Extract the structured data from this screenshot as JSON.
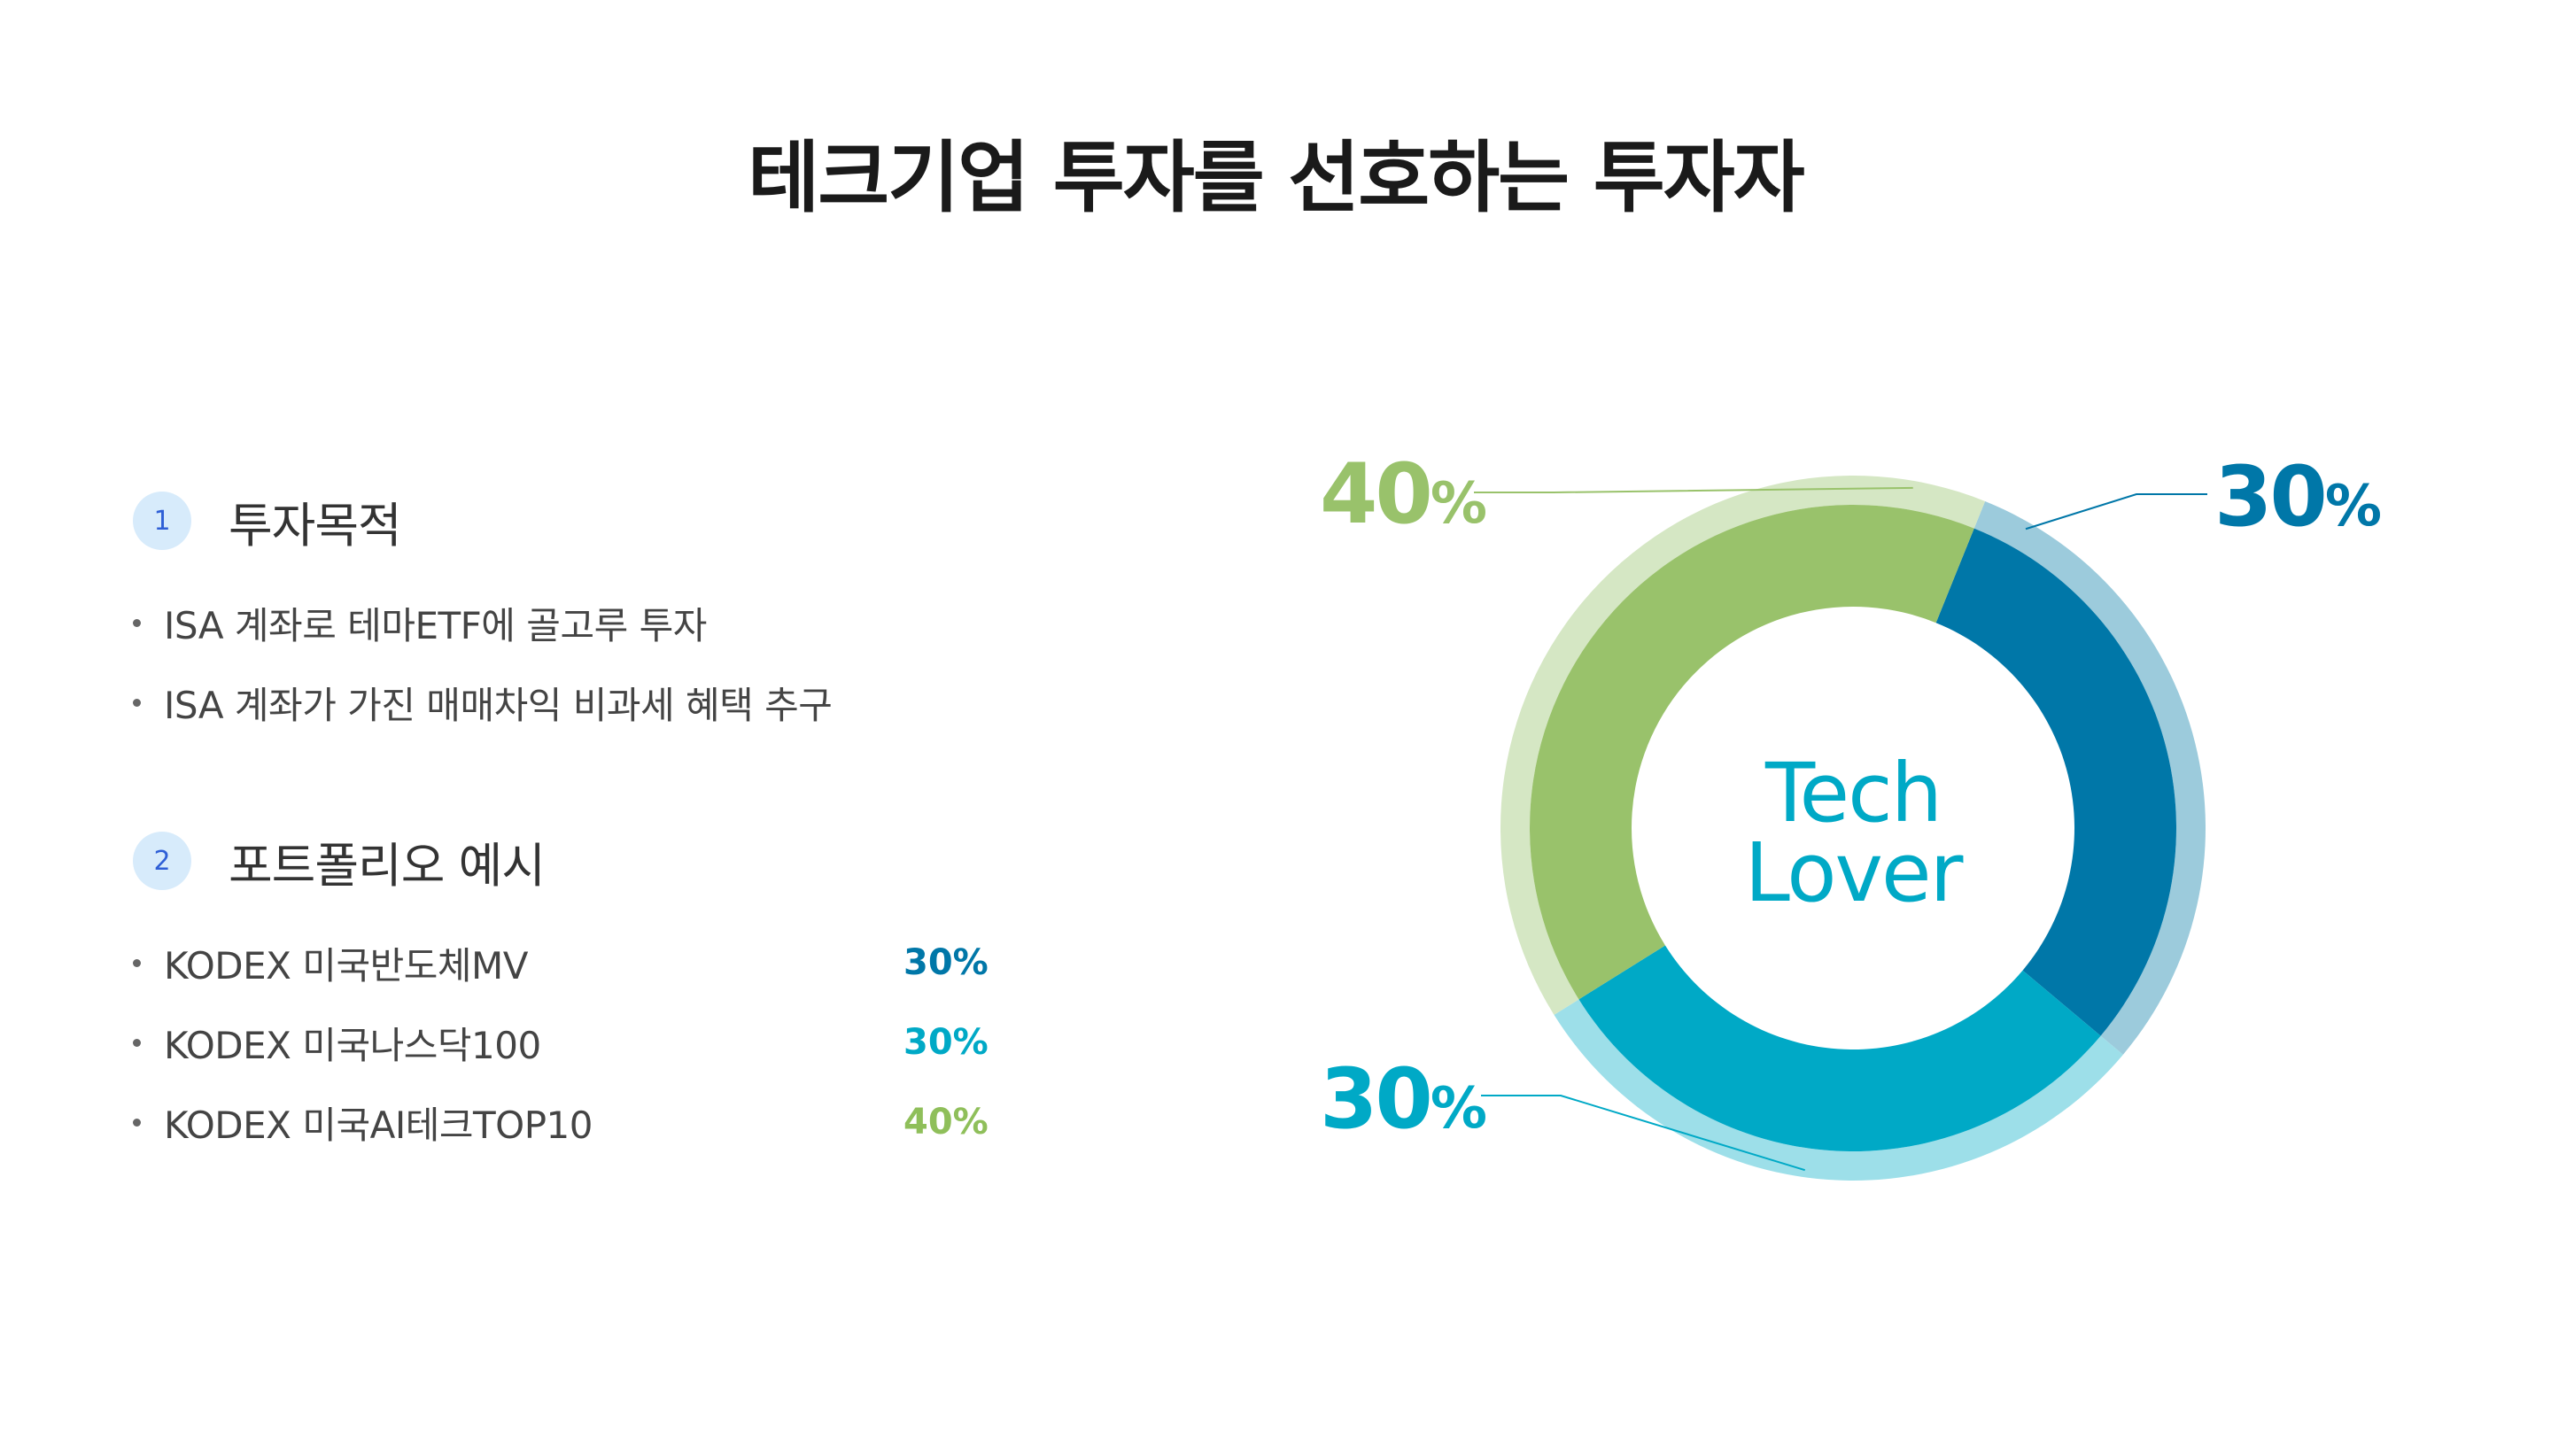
{
  "title": "테크기업 투자를 선호하는 투자자",
  "sections": [
    {
      "number": "1",
      "title": "투자목적",
      "items": [
        {
          "text": "ISA 계좌로 테마ETF에 골고루 투자"
        },
        {
          "text": "ISA 계좌가 가진 매매차익 비과세 혜택 추구"
        }
      ]
    },
    {
      "number": "2",
      "title": "포트폴리오 예시",
      "items": [
        {
          "text": "KODEX 미국반도체MV",
          "pct": "30%",
          "color": "#0077a8"
        },
        {
          "text": "KODEX 미국나스닥100",
          "pct": "30%",
          "color": "#00a9c6"
        },
        {
          "text": "KODEX 미국AI테크TOP10",
          "pct": "40%",
          "color": "#8fbf5a"
        }
      ]
    }
  ],
  "chart_data": {
    "type": "pie",
    "variant": "donut",
    "center_label": [
      "Tech",
      "Lover"
    ],
    "center_color": "#00a9c6",
    "slices": [
      {
        "name": "KODEX 미국반도체MV",
        "value": 30,
        "label_num": "30",
        "label_unit": "%",
        "color": "#0077a8",
        "outer_color": "#9ccbdc",
        "label_side": "top-right"
      },
      {
        "name": "KODEX 미국나스닥100",
        "value": 30,
        "label_num": "30",
        "label_unit": "%",
        "color": "#00a9c6",
        "outer_color": "#9ddfe9",
        "label_side": "bottom-left"
      },
      {
        "name": "KODEX 미국AI테크TOP10",
        "value": 40,
        "label_num": "40",
        "label_unit": "%",
        "color": "#99c26b",
        "outer_color": "#d5e7c4",
        "label_side": "top-left"
      }
    ]
  }
}
